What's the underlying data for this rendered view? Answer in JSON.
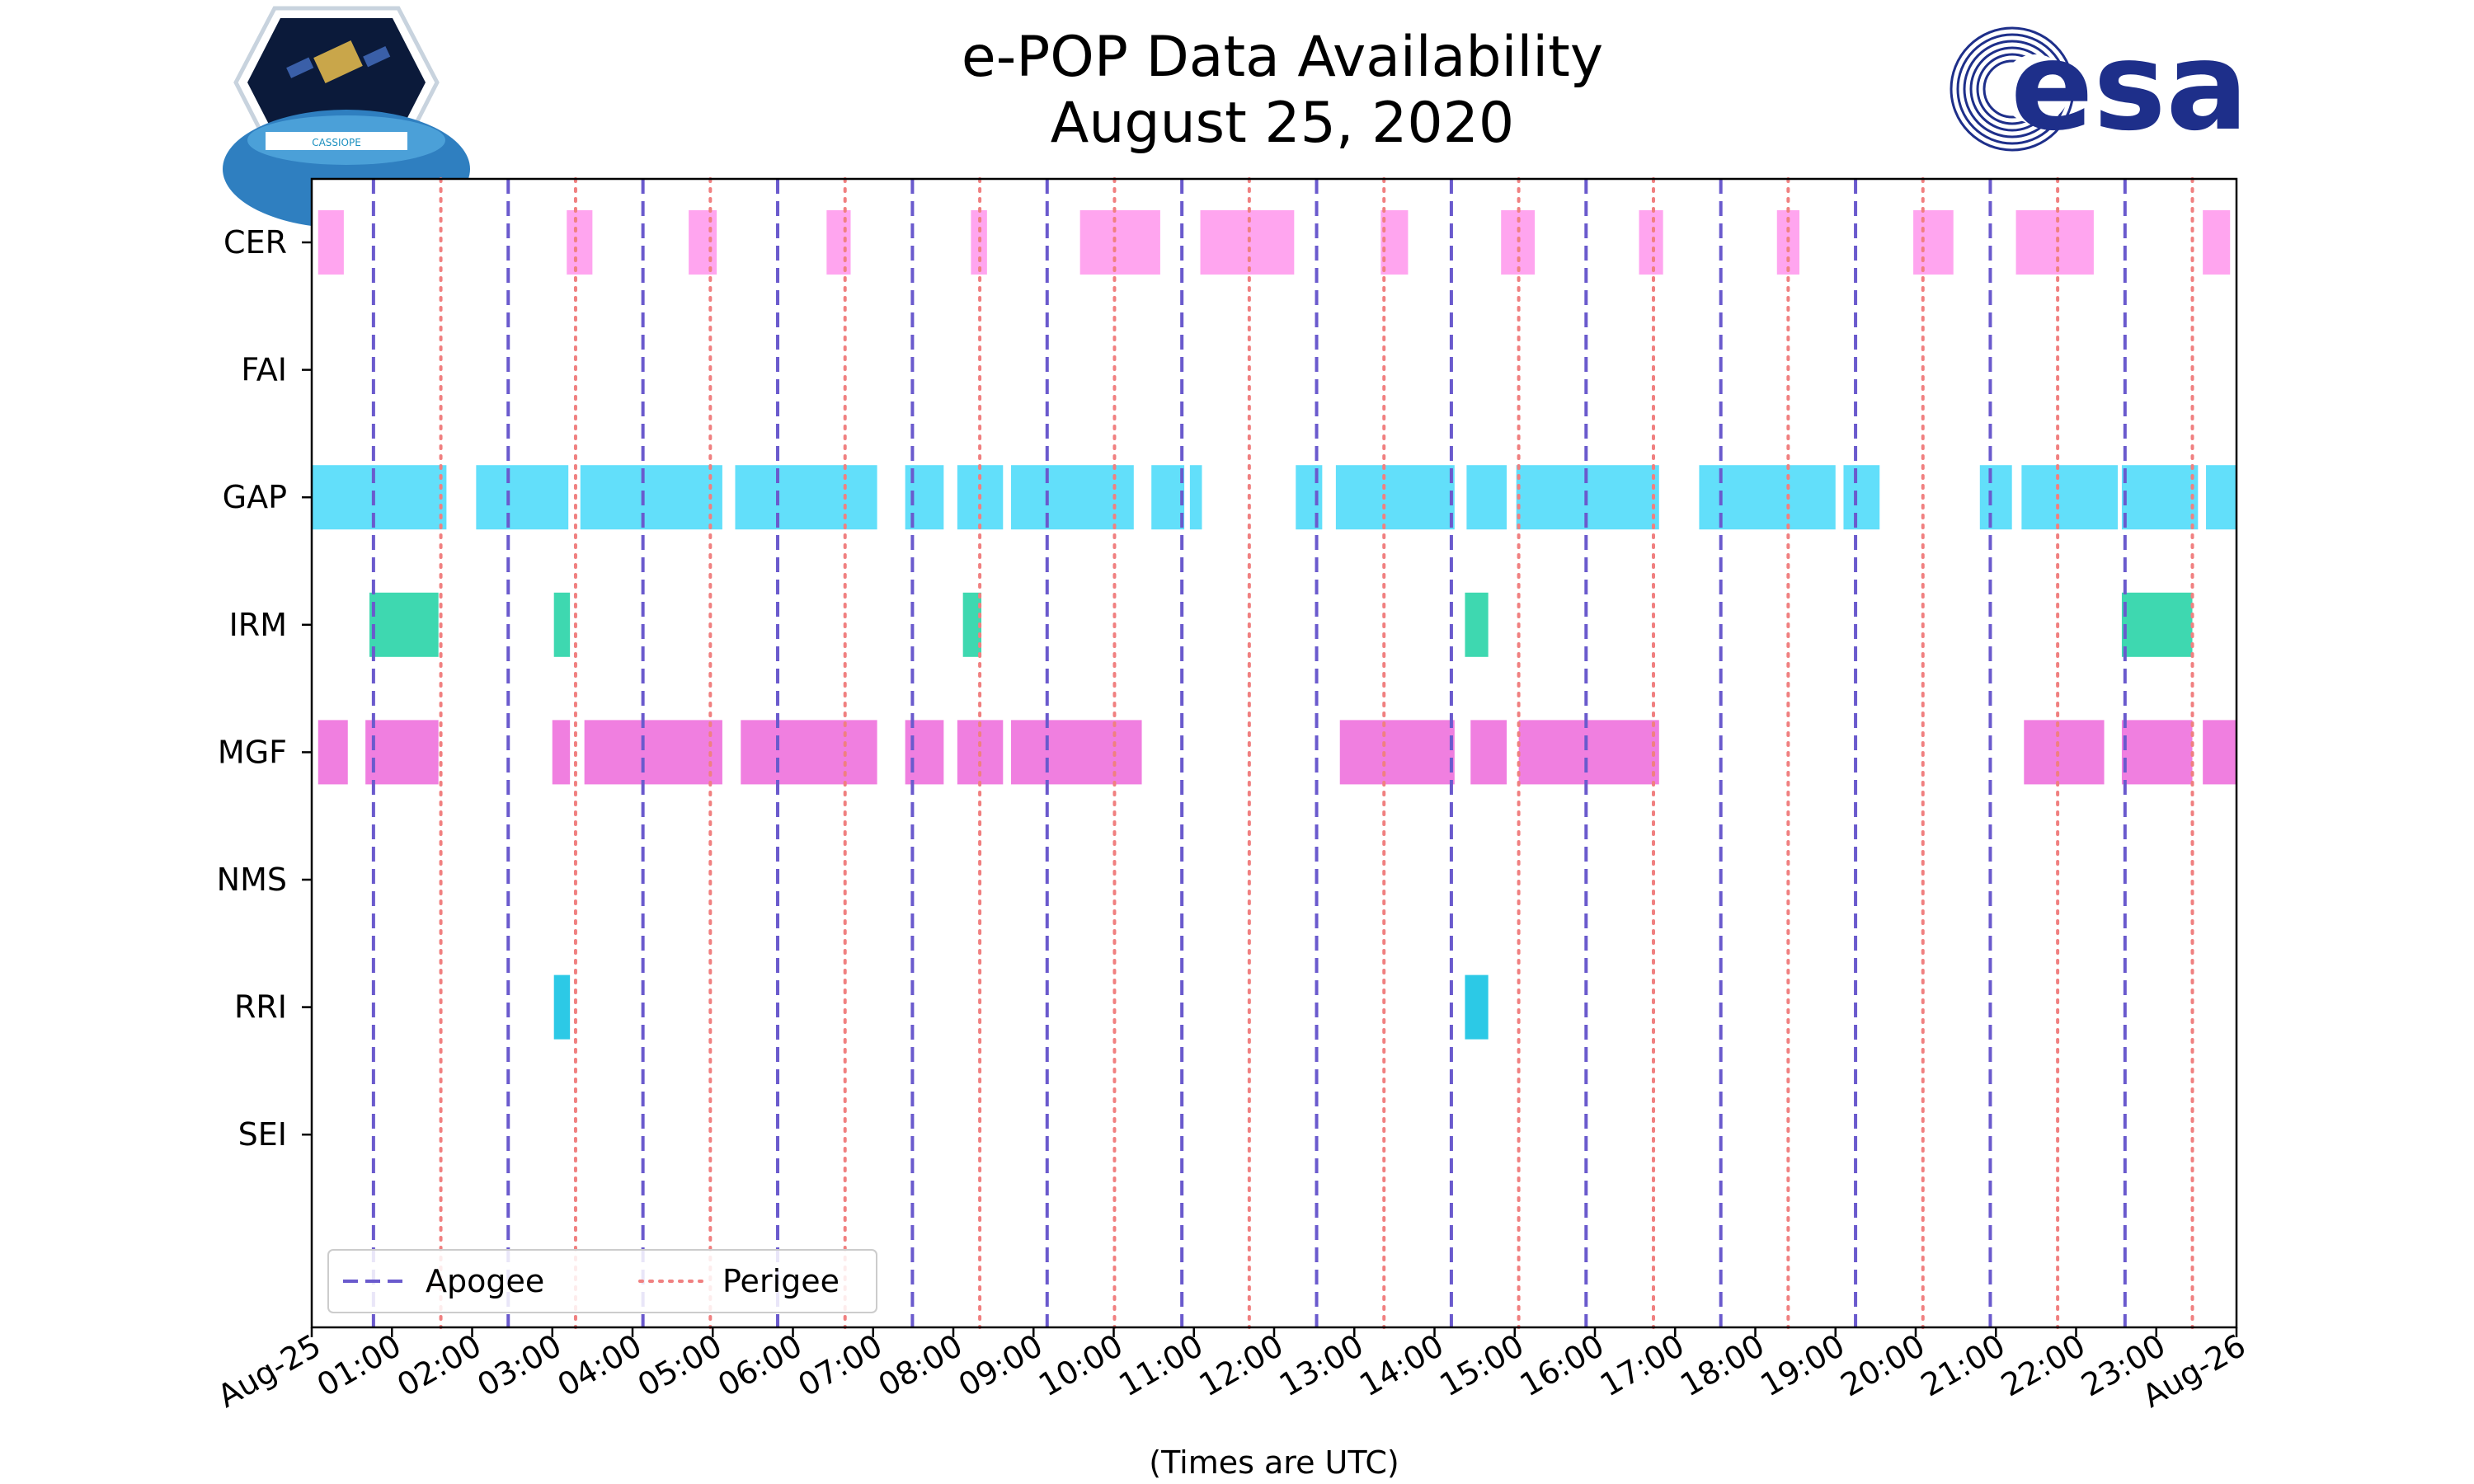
{
  "header": {
    "title_line1": "e-POP Data Availability",
    "title_line2": "August 25, 2020",
    "mission_logo_text": "CASSIOPE",
    "agency_logo_text": "esa"
  },
  "colors": {
    "apogee": "#6a5acd",
    "perigee": "#f08080",
    "CER": "#ffa5ef",
    "GAP": "#62dffa",
    "IRM": "#3ed8b0",
    "MGF": "#f07fe0",
    "RRI": "#2cc9e6",
    "esa_blue": "#1e2f8a"
  },
  "chart_data": {
    "type": "timeline",
    "title": "e-POP Data Availability August 25, 2020",
    "xlabel": "(Times are UTC)",
    "ylabel": "",
    "xlim_hours": [
      0,
      24
    ],
    "x_ticks": [
      {
        "hour": 0,
        "label": "Aug-25"
      },
      {
        "hour": 1,
        "label": "01:00"
      },
      {
        "hour": 2,
        "label": "02:00"
      },
      {
        "hour": 3,
        "label": "03:00"
      },
      {
        "hour": 4,
        "label": "04:00"
      },
      {
        "hour": 5,
        "label": "05:00"
      },
      {
        "hour": 6,
        "label": "06:00"
      },
      {
        "hour": 7,
        "label": "07:00"
      },
      {
        "hour": 8,
        "label": "08:00"
      },
      {
        "hour": 9,
        "label": "09:00"
      },
      {
        "hour": 10,
        "label": "10:00"
      },
      {
        "hour": 11,
        "label": "11:00"
      },
      {
        "hour": 12,
        "label": "12:00"
      },
      {
        "hour": 13,
        "label": "13:00"
      },
      {
        "hour": 14,
        "label": "14:00"
      },
      {
        "hour": 15,
        "label": "15:00"
      },
      {
        "hour": 16,
        "label": "16:00"
      },
      {
        "hour": 17,
        "label": "17:00"
      },
      {
        "hour": 18,
        "label": "18:00"
      },
      {
        "hour": 19,
        "label": "19:00"
      },
      {
        "hour": 20,
        "label": "20:00"
      },
      {
        "hour": 21,
        "label": "21:00"
      },
      {
        "hour": 22,
        "label": "22:00"
      },
      {
        "hour": 23,
        "label": "23:00"
      },
      {
        "hour": 24,
        "label": "Aug-26"
      }
    ],
    "instruments": [
      "CER",
      "FAI",
      "GAP",
      "IRM",
      "MGF",
      "NMS",
      "RRI",
      "SEI"
    ],
    "apogee_hours": [
      0.77,
      2.45,
      4.13,
      5.81,
      7.49,
      9.17,
      10.85,
      12.53,
      14.21,
      15.89,
      17.57,
      19.25,
      20.93,
      22.61
    ],
    "perigee_hours": [
      1.61,
      3.29,
      4.97,
      6.65,
      8.33,
      10.01,
      11.69,
      13.37,
      15.05,
      16.73,
      18.41,
      20.09,
      21.77,
      23.45
    ],
    "series": [
      {
        "name": "CER",
        "intervals": [
          [
            0.08,
            0.4
          ],
          [
            3.18,
            3.5
          ],
          [
            4.7,
            5.05
          ],
          [
            6.42,
            6.72
          ],
          [
            8.22,
            8.42
          ],
          [
            9.58,
            10.58
          ],
          [
            11.08,
            12.25
          ],
          [
            13.33,
            13.67
          ],
          [
            14.83,
            15.25
          ],
          [
            16.55,
            16.85
          ],
          [
            18.27,
            18.55
          ],
          [
            19.97,
            20.47
          ],
          [
            21.25,
            22.22
          ],
          [
            23.58,
            23.92
          ]
        ]
      },
      {
        "name": "FAI",
        "intervals": []
      },
      {
        "name": "GAP",
        "intervals": [
          [
            0.0,
            1.68
          ],
          [
            2.05,
            3.2
          ],
          [
            3.35,
            5.12
          ],
          [
            5.28,
            7.05
          ],
          [
            7.4,
            7.88
          ],
          [
            8.05,
            8.62
          ],
          [
            8.72,
            10.25
          ],
          [
            10.47,
            10.88
          ],
          [
            10.95,
            11.1
          ],
          [
            12.27,
            12.6
          ],
          [
            12.77,
            14.25
          ],
          [
            14.4,
            14.9
          ],
          [
            15.02,
            16.8
          ],
          [
            17.3,
            19.0
          ],
          [
            19.1,
            19.55
          ],
          [
            20.8,
            21.2
          ],
          [
            21.32,
            22.52
          ],
          [
            22.57,
            23.52
          ],
          [
            23.62,
            24.0
          ]
        ]
      },
      {
        "name": "IRM",
        "intervals": [
          [
            0.72,
            1.58
          ],
          [
            3.02,
            3.22
          ],
          [
            8.12,
            8.35
          ],
          [
            14.38,
            14.67
          ],
          [
            22.57,
            23.45
          ]
        ]
      },
      {
        "name": "MGF",
        "intervals": [
          [
            0.08,
            0.45
          ],
          [
            0.67,
            1.58
          ],
          [
            3.0,
            3.22
          ],
          [
            3.4,
            5.12
          ],
          [
            5.35,
            7.05
          ],
          [
            7.4,
            7.88
          ],
          [
            8.05,
            8.62
          ],
          [
            8.72,
            10.35
          ],
          [
            12.82,
            14.25
          ],
          [
            14.45,
            14.9
          ],
          [
            15.05,
            16.8
          ],
          [
            21.35,
            22.35
          ],
          [
            22.57,
            23.45
          ],
          [
            23.58,
            24.0
          ]
        ]
      },
      {
        "name": "NMS",
        "intervals": []
      },
      {
        "name": "RRI",
        "intervals": [
          [
            3.02,
            3.22
          ],
          [
            14.38,
            14.67
          ]
        ]
      },
      {
        "name": "SEI",
        "intervals": []
      }
    ],
    "legend": {
      "position": "lower-left",
      "entries": [
        {
          "label": "Apogee",
          "style": "dashed"
        },
        {
          "label": "Perigee",
          "style": "dotted"
        }
      ]
    }
  }
}
